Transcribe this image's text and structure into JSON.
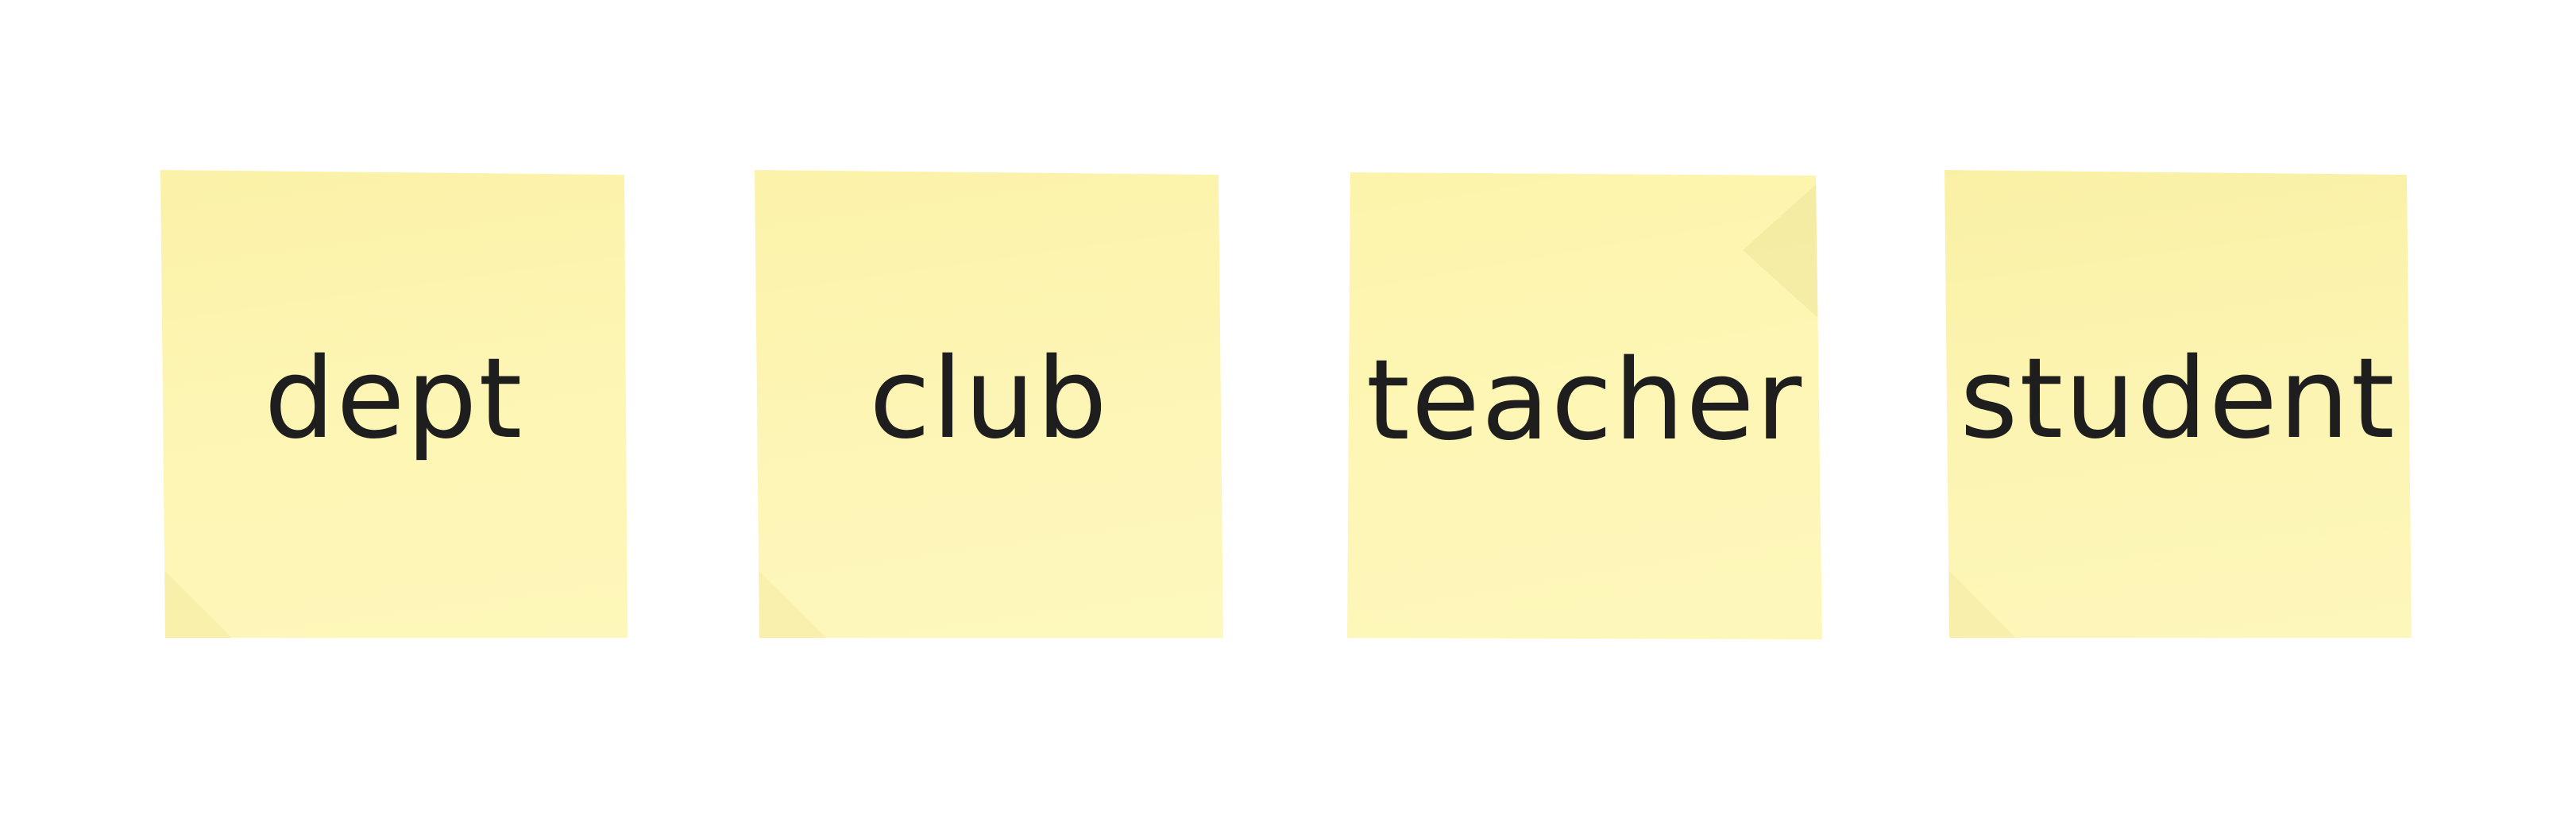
{
  "board": {
    "background_color": "#ffffff",
    "notes": [
      {
        "label": "dept",
        "color": "#fcf3ad"
      },
      {
        "label": "club",
        "color": "#fcf4af"
      },
      {
        "label": "teacher",
        "color": "#fdf5b0"
      },
      {
        "label": "student",
        "color": "#fbf2ab"
      }
    ],
    "text_color": "#1e1e1e"
  }
}
